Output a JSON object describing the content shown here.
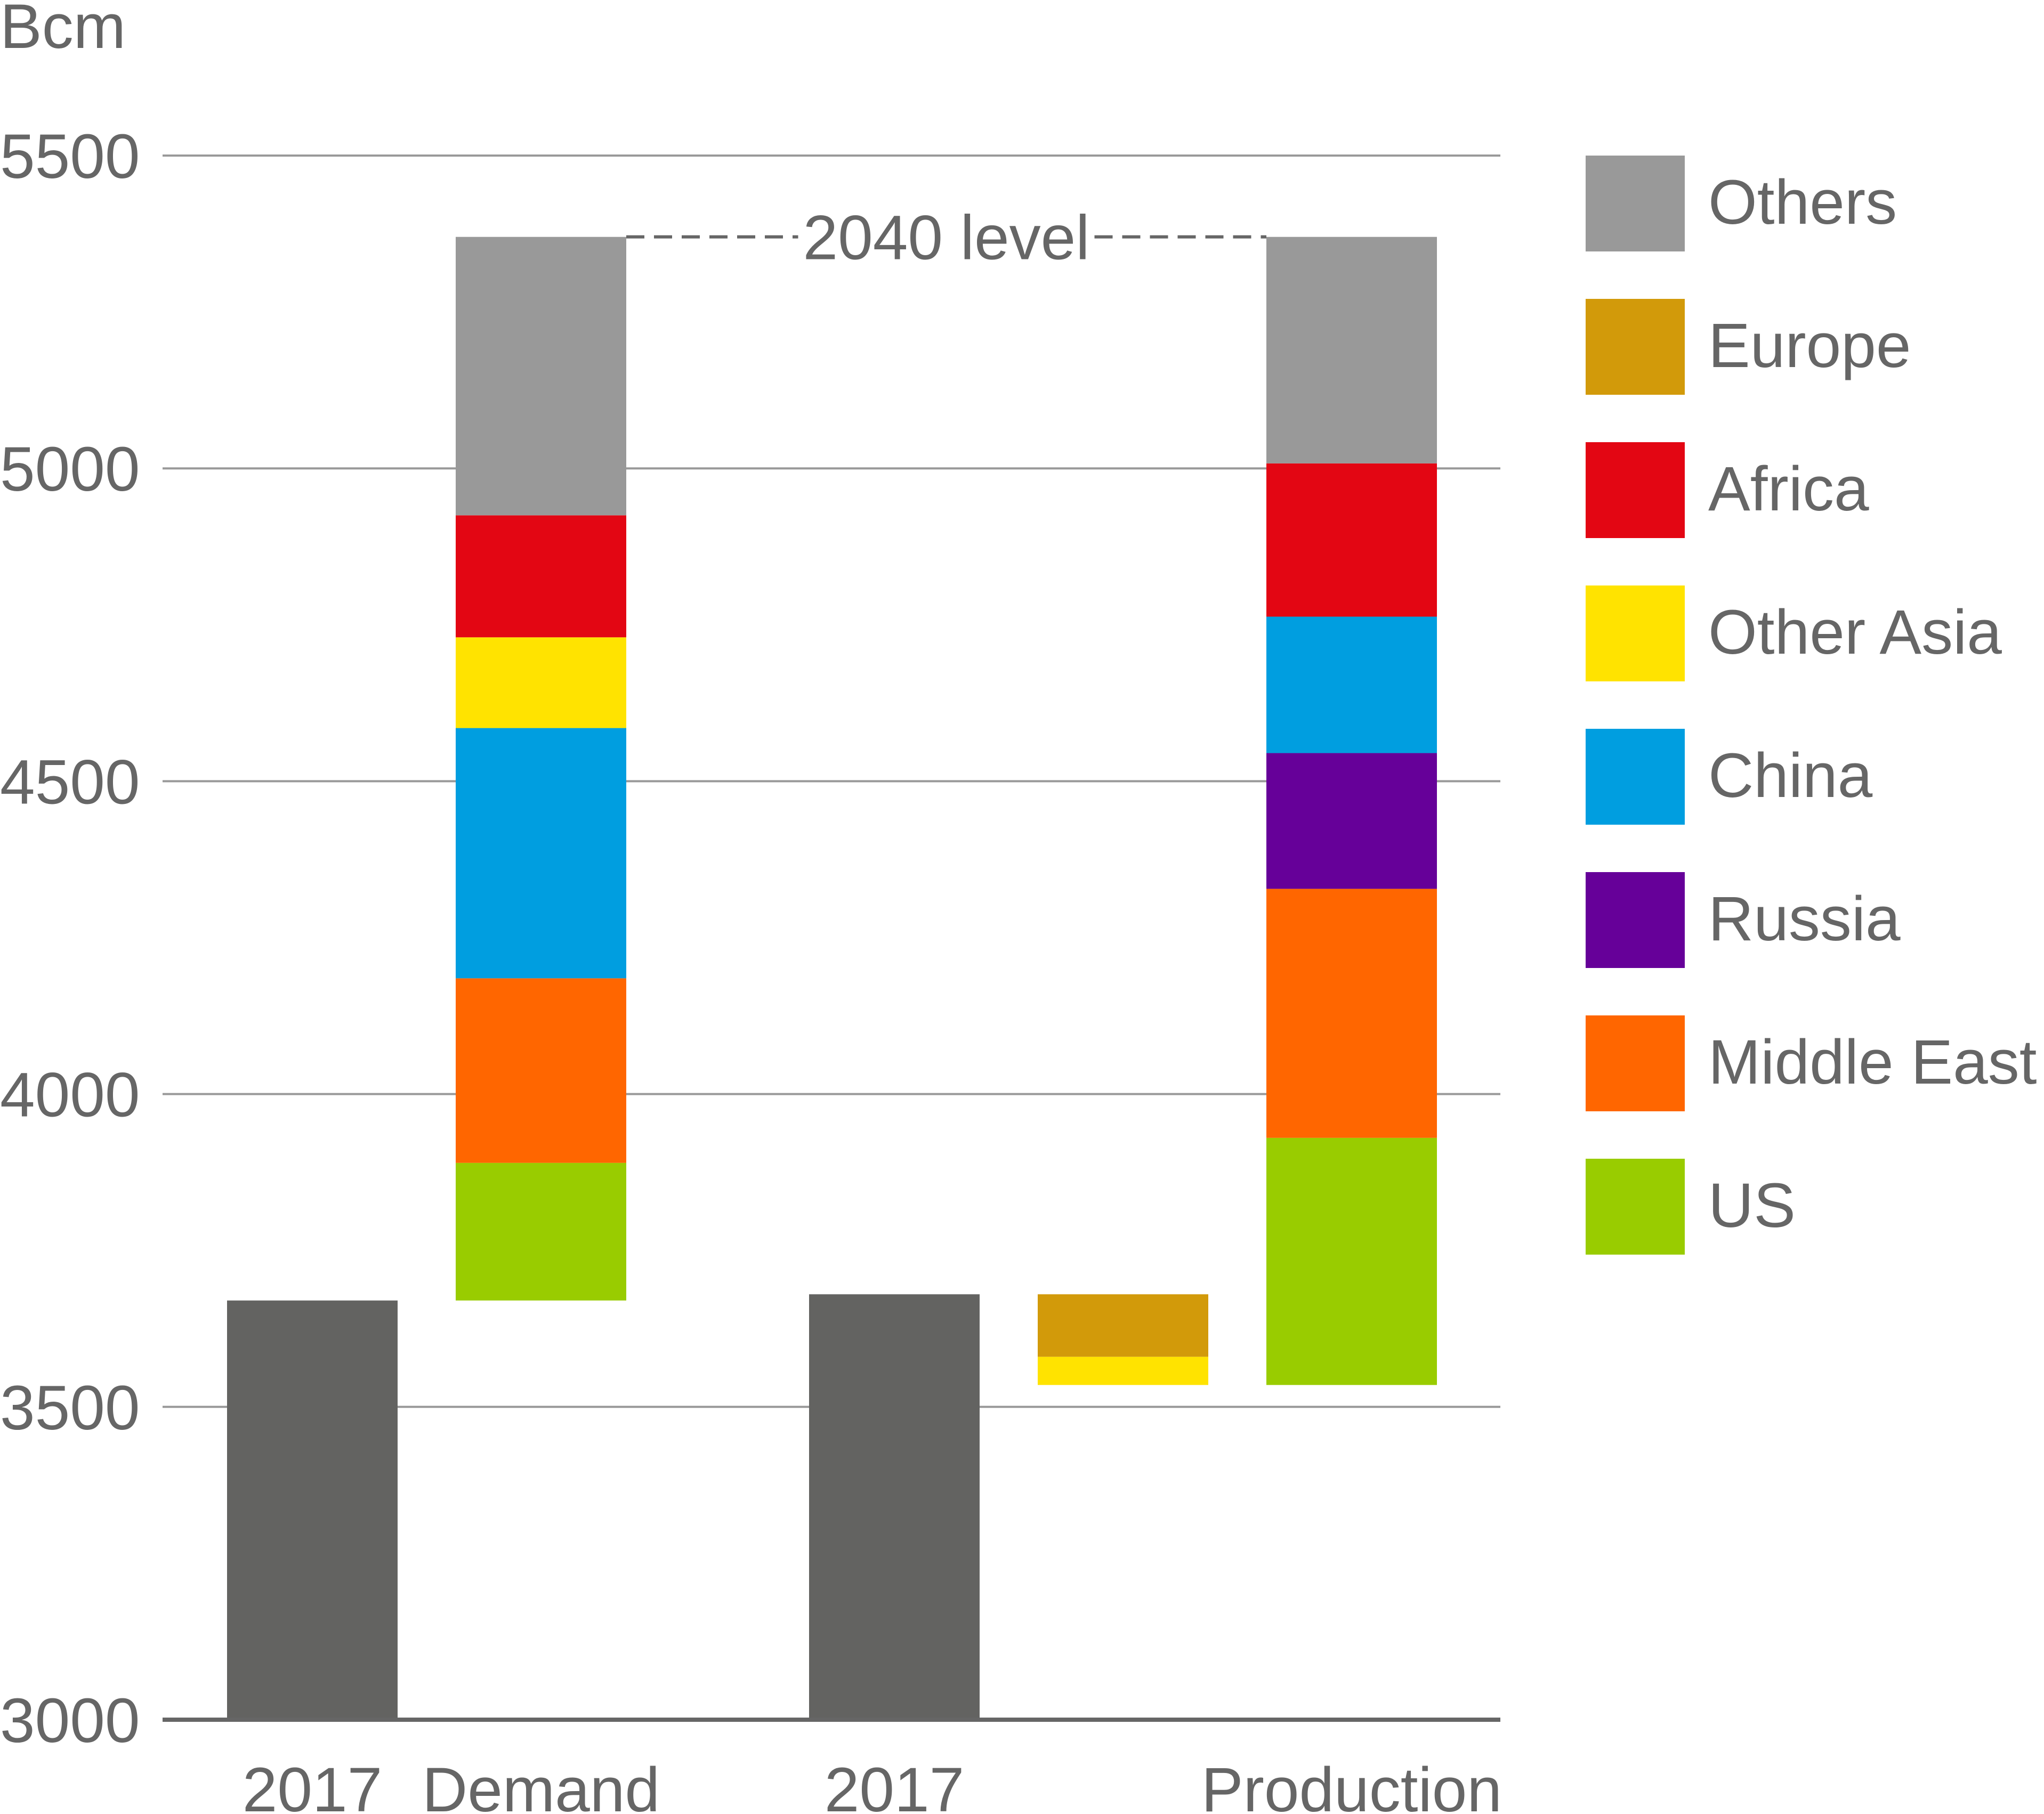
{
  "chart_data": {
    "type": "bar",
    "subtype": "waterfall",
    "ylabel": "Bcm",
    "ylim": [
      3000,
      5500
    ],
    "yticks": [
      3000,
      3500,
      4000,
      4500,
      5000,
      5500
    ],
    "grid": true,
    "legend_position": "right",
    "annotation": "2040 level",
    "colors": {
      "base": "#636361",
      "Others": "#999999",
      "Europe": "#D29A0A",
      "Africa": "#E30613",
      "Other Asia": "#FFE300",
      "China": "#009EE0",
      "Russia": "#660099",
      "Middle East": "#FF6600",
      "US": "#99CC00"
    },
    "legend": [
      "Others",
      "Europe",
      "Africa",
      "Other Asia",
      "China",
      "Russia",
      "Middle East",
      "US"
    ],
    "columns": [
      {
        "label": "2017",
        "type": "base",
        "value": 3670
      },
      {
        "label": "Demand",
        "type": "stack",
        "base": 3670,
        "segments": [
          {
            "name": "US",
            "value": 220
          },
          {
            "name": "Middle East",
            "value": 295
          },
          {
            "name": "China",
            "value": 400
          },
          {
            "name": "Other Asia",
            "value": 145
          },
          {
            "name": "Africa",
            "value": 195
          },
          {
            "name": "Others",
            "value": 445
          }
        ]
      },
      {
        "label": "2017",
        "type": "base",
        "value": 3680
      },
      {
        "label": "",
        "type": "decline",
        "top": 3680,
        "segments": [
          {
            "name": "Europe",
            "value": 100
          },
          {
            "name": "Other Asia",
            "value": 45
          }
        ]
      },
      {
        "label": "Production",
        "type": "stack",
        "base": 3535,
        "segments": [
          {
            "name": "US",
            "value": 395
          },
          {
            "name": "Middle East",
            "value": 398
          },
          {
            "name": "Russia",
            "value": 217
          },
          {
            "name": "China",
            "value": 218
          },
          {
            "name": "Africa",
            "value": 245
          },
          {
            "name": "Others",
            "value": 362
          }
        ]
      }
    ]
  }
}
